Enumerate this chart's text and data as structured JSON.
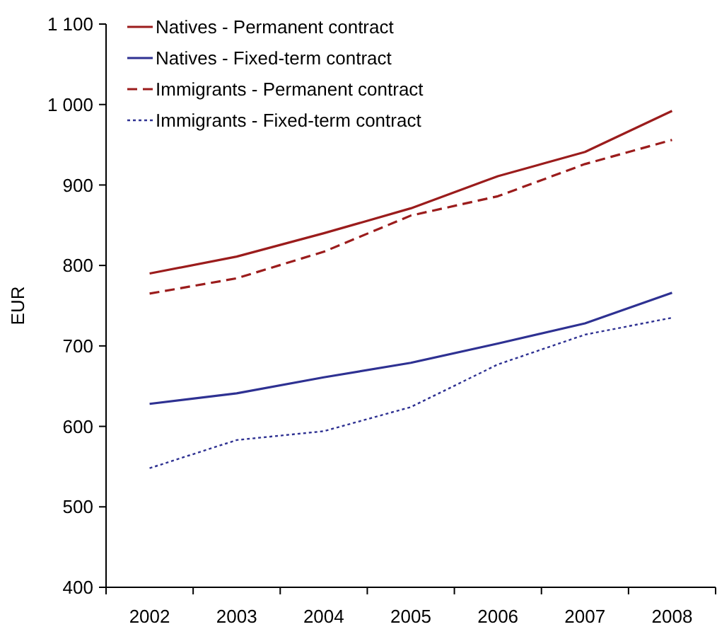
{
  "chart_data": {
    "type": "line",
    "ylabel": "EUR",
    "categories": [
      "2002",
      "2003",
      "2004",
      "2005",
      "2006",
      "2007",
      "2008"
    ],
    "ylim": [
      400,
      1100
    ],
    "yticks": [
      400,
      500,
      600,
      700,
      800,
      900,
      {
        "value": 1000,
        "label": "1 000"
      },
      {
        "value": 1100,
        "label": "1 100"
      }
    ],
    "grid": false,
    "legend": "top left",
    "marker": "none",
    "series": [
      {
        "name": "Natives - Permanent contract",
        "color": "#9b1c1c",
        "line_style": "solid",
        "values": [
          790,
          811,
          840,
          871,
          911,
          941,
          992
        ]
      },
      {
        "name": "Natives - Fixed-term contract",
        "color": "#2e3192",
        "line_style": "solid",
        "values": [
          628,
          641,
          661,
          679,
          703,
          728,
          766
        ]
      },
      {
        "name": "Immigrants - Permanent contract",
        "color": "#9b1c1c",
        "line_style": "dashed",
        "values": [
          765,
          784,
          817,
          862,
          886,
          926,
          956
        ]
      },
      {
        "name": "Immigrants - Fixed-term contract",
        "color": "#2e3192",
        "line_style": "dotted",
        "values": [
          548,
          583,
          594,
          624,
          677,
          714,
          735
        ]
      }
    ]
  }
}
